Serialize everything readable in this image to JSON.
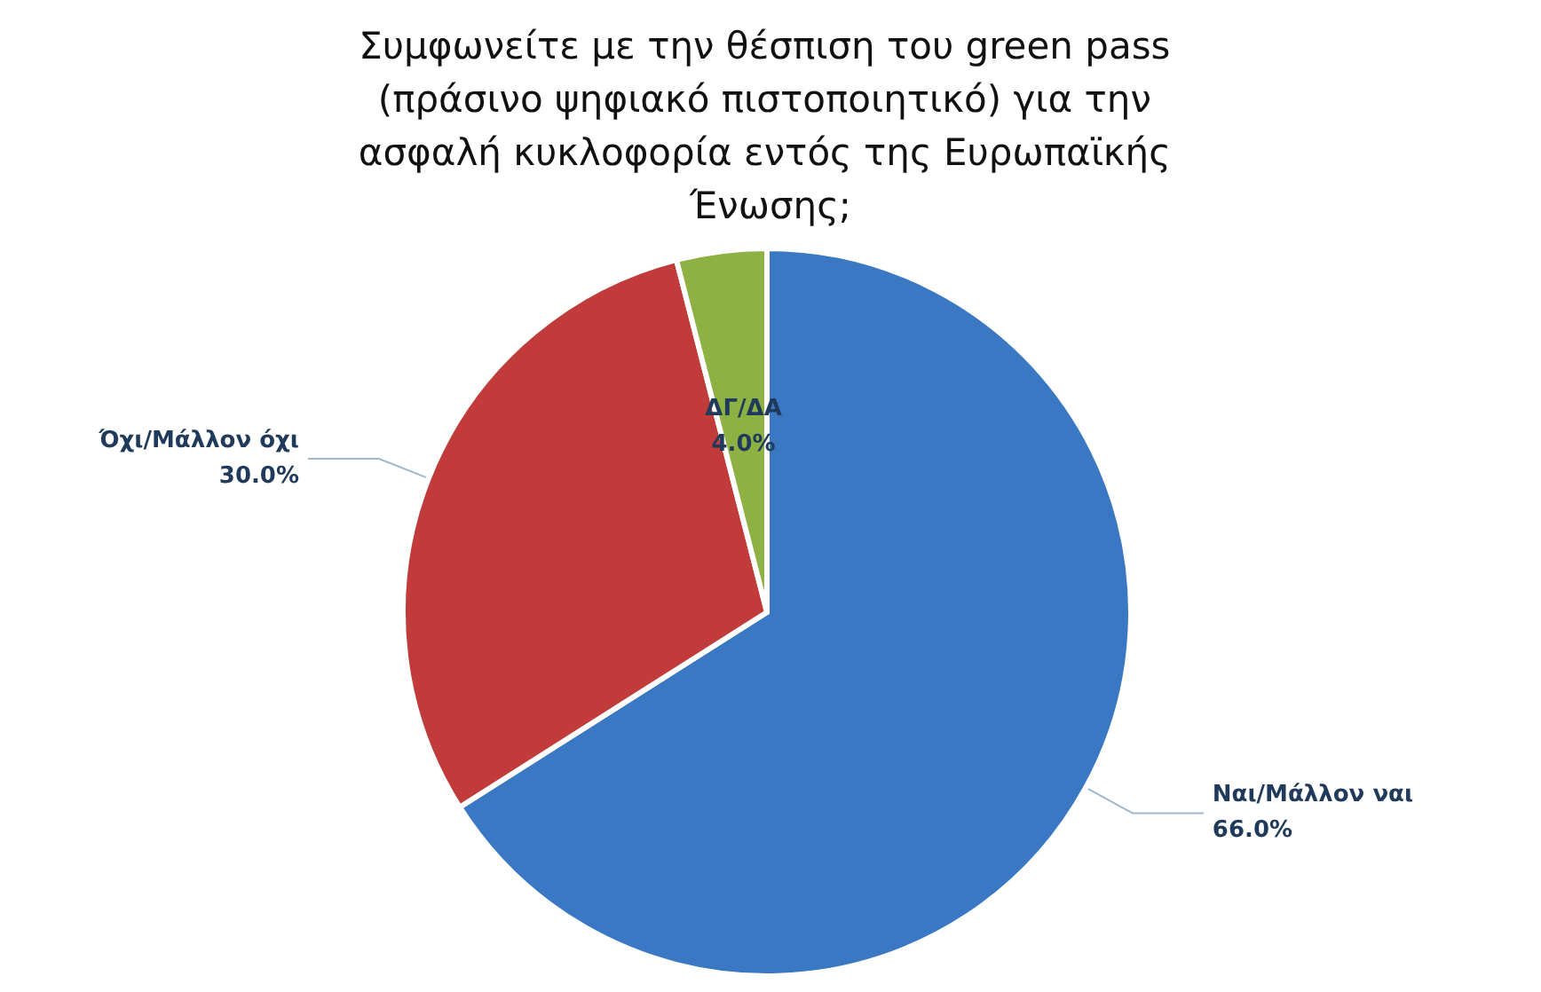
{
  "chart_data": {
    "type": "pie",
    "title": "Συμφωνείτε με την θέσπιση του green pass (πράσινο ψηφιακό πιστοποιητικό) για την ασφαλή κυκλοφορία εντός της Ευρωπαϊκής Ένωσης;",
    "categories": [
      "Ναι/Μάλλον ναι",
      "Όχι/Μάλλον όχι",
      "ΔΓ/ΔΑ"
    ],
    "values": [
      66,
      30,
      4
    ],
    "value_labels": [
      "66.0%",
      "30.0%",
      "4.0%"
    ],
    "colors": [
      "#3b78c4",
      "#c03b3a",
      "#8db243"
    ],
    "legend": false
  }
}
